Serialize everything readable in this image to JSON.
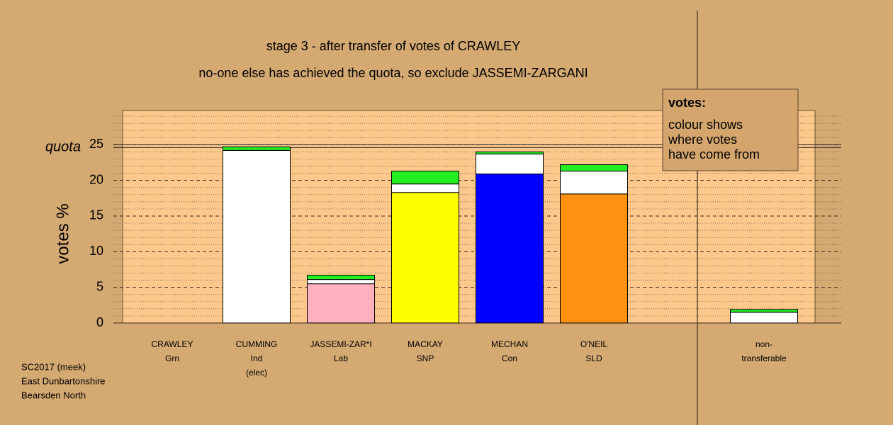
{
  "chart_data": {
    "type": "bar",
    "stacked": true,
    "title": "stage 3 - after transfer of votes of CRAWLEY",
    "subtitle": "no-one else has achieved the quota, so exclude JASSEMI-ZARGANI",
    "y_label": "votes %",
    "categories": [
      [
        "CRAWLEY",
        "Grn"
      ],
      [
        "CUMMING",
        "Ind",
        "(elec)"
      ],
      [
        "JASSEMI-ZAR*I",
        "Lab"
      ],
      [
        "MACKAY",
        "SNP"
      ],
      [
        "MECHAN",
        "Con"
      ],
      [
        "O'NEIL",
        "SLD"
      ],
      [
        "non-",
        "transferable"
      ]
    ],
    "series": [
      {
        "colors": [
          "#00ee00",
          "#ffffff",
          "#ffb0c0",
          "#ffff00",
          "#0000ff",
          "#ff9010",
          "#ffffff"
        ],
        "values": [
          0,
          24.2,
          5.5,
          18.3,
          20.9,
          18.1,
          1.5
        ]
      },
      {
        "color": "#ffffff",
        "values": [
          0,
          0,
          0.6,
          1.2,
          2.8,
          3.2,
          0
        ]
      },
      {
        "color": "#22ee22",
        "values": [
          0,
          0.5,
          0.6,
          1.8,
          0.3,
          0.9,
          0.4
        ]
      }
    ],
    "quota": {
      "value": 24.8,
      "label": "quota"
    },
    "ylim": [
      0,
      29.8
    ],
    "yticks": [
      0,
      5,
      10,
      15,
      20,
      25
    ],
    "minor_yticks": [
      1,
      2,
      3,
      4,
      6,
      7,
      8,
      9,
      11,
      12,
      13,
      14,
      16,
      17,
      18,
      19,
      21,
      22,
      23,
      24,
      26,
      27,
      28,
      29
    ],
    "legend": {
      "title": "votes:",
      "lines": [
        "colour shows",
        "where votes",
        "have come from"
      ]
    },
    "notes": [
      "SC2017 (meek)",
      "East Dunbartonshire",
      "Bearsden North"
    ]
  }
}
